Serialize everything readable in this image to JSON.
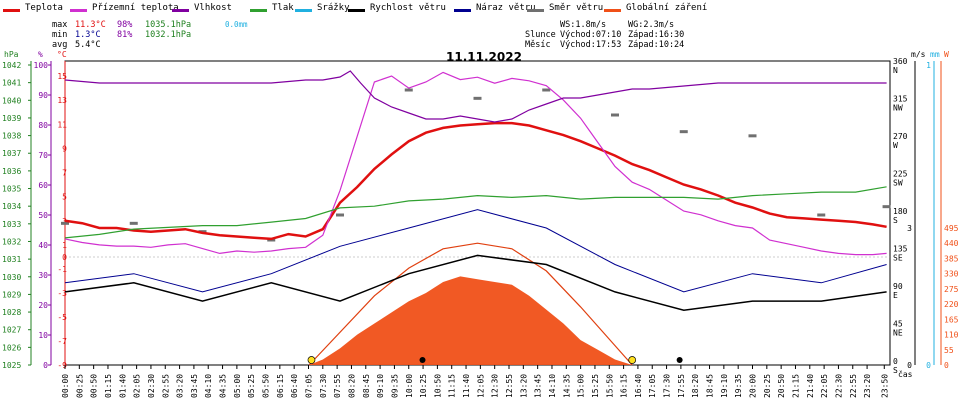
{
  "legend": [
    {
      "label": "Teplota",
      "color": "#e01010"
    },
    {
      "label": "Přízemní teplota",
      "color": "#d030d0"
    },
    {
      "label": "Vlhkost",
      "color": "#8000a0"
    },
    {
      "label": "Tlak",
      "color": "#30a030"
    },
    {
      "label": "Srážky",
      "color": "#20b0e0"
    },
    {
      "label": "Rychlost větru",
      "color": "#000000"
    },
    {
      "label": "Náraz větru",
      "color": "#000090"
    },
    {
      "label": "Směr větru",
      "color": "#707070"
    },
    {
      "label": "Globální záření",
      "color": "#f05018"
    }
  ],
  "stats": {
    "max": {
      "label": "max",
      "temp": "11.3°C",
      "hum": "98%",
      "press": "1035.1hPa",
      "rain": "0.0mm"
    },
    "min": {
      "label": "min",
      "temp": "1.3°C",
      "hum": "81%",
      "press": "1032.1hPa"
    },
    "avg": {
      "label": "avg",
      "temp": "5.4°C"
    },
    "ws": "WS:1.8m/s",
    "wg": "WG:2.3m/s",
    "sun_label": "Slunce",
    "sunrise": "Východ:07:10",
    "sunset": "Západ:16:30",
    "moon_label": "Měsíc",
    "moonrise": "Východ:17:53",
    "moonset": "Západ:10:24"
  },
  "axis_headers": {
    "hpa": "hPa",
    "pct": "%",
    "degc": "°C",
    "ms": "m/s",
    "mm": "mm",
    "w": "W",
    "time": "čas"
  },
  "chart_data": {
    "type": "line",
    "title": "11.11.2022",
    "xlabel": "čas",
    "x_ticks": [
      "00:00",
      "00:25",
      "00:50",
      "01:15",
      "01:40",
      "02:05",
      "02:30",
      "02:55",
      "03:20",
      "03:45",
      "04:10",
      "04:35",
      "05:00",
      "05:25",
      "05:50",
      "06:15",
      "06:40",
      "07:05",
      "07:30",
      "07:55",
      "08:20",
      "08:45",
      "09:10",
      "09:35",
      "10:00",
      "10:25",
      "10:50",
      "11:15",
      "11:40",
      "12:05",
      "12:30",
      "12:55",
      "13:20",
      "13:45",
      "14:10",
      "14:35",
      "15:00",
      "15:25",
      "15:50",
      "16:15",
      "16:40",
      "17:05",
      "17:30",
      "17:55",
      "18:20",
      "18:45",
      "19:10",
      "19:35",
      "20:00",
      "20:25",
      "20:50",
      "21:15",
      "21:40",
      "22:05",
      "22:30",
      "22:55",
      "23:20",
      "23:50"
    ],
    "xlim": [
      0,
      24
    ],
    "axes": {
      "pressure_hpa": {
        "ylim": [
          1025,
          1042
        ],
        "ticks": [
          "1025",
          "1026",
          "1027",
          "1028",
          "1029",
          "1030",
          "1031",
          "1032",
          "1033",
          "1034",
          "1035",
          "1036",
          "1037",
          "1038",
          "1039",
          "1040",
          "1041",
          "1042"
        ]
      },
      "humidity_pct": {
        "ylim": [
          0,
          100
        ],
        "ticks": [
          "0",
          "10",
          "20",
          "30",
          "40",
          "50",
          "60",
          "70",
          "80",
          "90",
          "100"
        ]
      },
      "temperature_c": {
        "ylim": [
          -9,
          16
        ],
        "ticks": [
          "-9",
          "-7",
          "-5",
          "-3",
          "-1",
          "0",
          "1",
          "3",
          "5",
          "7",
          "9",
          "11",
          "13",
          "15"
        ]
      },
      "wind_dir": {
        "ticks": [
          "0 S",
          "45 NE",
          "90 E",
          "135 SE",
          "180 S",
          "225 SW",
          "270 W",
          "315 NW",
          "360 N"
        ]
      },
      "wind_ms": {
        "ticks": [
          "0",
          "3"
        ]
      },
      "rain_mm": {
        "ticks": [
          "0",
          "1"
        ]
      },
      "radiation_w": {
        "ticks": [
          "0",
          "55",
          "110",
          "165",
          "220",
          "275",
          "330",
          "385",
          "440",
          "495"
        ]
      }
    },
    "series": [
      {
        "name": "Teplota",
        "color": "#e01010",
        "axis": "temperature_c",
        "x": [
          0,
          0.5,
          1,
          1.5,
          2,
          2.5,
          3,
          3.5,
          4,
          4.5,
          5,
          5.5,
          6,
          6.5,
          7,
          7.5,
          8,
          8.5,
          9,
          9.5,
          10,
          10.5,
          11,
          11.5,
          12,
          12.5,
          13,
          13.5,
          14,
          14.5,
          15,
          15.5,
          16,
          16.5,
          17,
          17.5,
          18,
          18.5,
          19,
          19.5,
          20,
          20.5,
          21,
          21.5,
          22,
          22.5,
          23,
          23.5,
          23.9
        ],
        "y": [
          3,
          2.8,
          2.4,
          2.4,
          2.2,
          2.1,
          2.2,
          2.3,
          2.0,
          1.8,
          1.7,
          1.6,
          1.5,
          1.9,
          1.7,
          2.3,
          4.5,
          5.8,
          7.3,
          8.5,
          9.6,
          10.3,
          10.7,
          10.9,
          11.0,
          11.1,
          11.1,
          10.9,
          10.5,
          10.1,
          9.6,
          9.0,
          8.4,
          7.7,
          7.2,
          6.6,
          6.0,
          5.6,
          5.1,
          4.5,
          4.1,
          3.6,
          3.3,
          3.2,
          3.1,
          3.0,
          2.9,
          2.7,
          2.5
        ]
      },
      {
        "name": "Přízemní teplota",
        "color": "#d030d0",
        "axis": "temperature_c",
        "x": [
          0,
          0.5,
          1,
          1.5,
          2,
          2.5,
          3,
          3.5,
          4,
          4.5,
          5,
          5.5,
          6,
          6.5,
          7,
          7.5,
          8,
          8.5,
          9,
          9.5,
          10,
          10.5,
          11,
          11.5,
          12,
          12.5,
          13,
          13.5,
          14,
          14.5,
          15,
          15.5,
          16,
          16.5,
          17,
          17.5,
          18,
          18.5,
          19,
          19.5,
          20,
          20.5,
          21,
          21.5,
          22,
          22.5,
          23,
          23.5,
          23.9
        ],
        "y": [
          1.5,
          1.2,
          1.0,
          0.9,
          0.9,
          0.8,
          1.0,
          1.1,
          0.7,
          0.3,
          0.5,
          0.4,
          0.5,
          0.7,
          0.8,
          1.8,
          5.5,
          10.0,
          14.5,
          15.0,
          14.0,
          14.5,
          15.3,
          14.7,
          14.9,
          14.4,
          14.8,
          14.6,
          14.2,
          13.0,
          11.5,
          9.5,
          7.5,
          6.2,
          5.6,
          4.7,
          3.8,
          3.5,
          3.0,
          2.6,
          2.4,
          1.4,
          1.1,
          0.8,
          0.5,
          0.3,
          0.2,
          0.2,
          0.3
        ]
      },
      {
        "name": "Vlhkost",
        "color": "#8000a0",
        "axis": "humidity_pct",
        "x": [
          0,
          1,
          2,
          3,
          4,
          5,
          6,
          7,
          7.5,
          8,
          8.3,
          8.6,
          9,
          9.5,
          10,
          10.5,
          11,
          11.5,
          12,
          12.5,
          13,
          13.5,
          14,
          14.5,
          15,
          15.5,
          16,
          16.5,
          17,
          18,
          19,
          20,
          21,
          22,
          23,
          23.9
        ],
        "y": [
          95,
          94,
          94,
          94,
          94,
          94,
          94,
          95,
          95,
          96,
          98,
          94,
          89,
          86,
          84,
          82,
          82,
          83,
          82,
          81,
          82,
          85,
          87,
          89,
          89,
          90,
          91,
          92,
          92,
          93,
          94,
          94,
          94,
          94,
          94,
          94
        ]
      },
      {
        "name": "Tlak",
        "color": "#30a030",
        "axis": "pressure_hpa",
        "x": [
          0,
          1,
          2,
          3,
          4,
          5,
          6,
          7,
          8,
          9,
          10,
          11,
          12,
          13,
          14,
          15,
          16,
          17,
          18,
          19,
          20,
          21,
          22,
          23,
          23.9
        ],
        "y": [
          1032.2,
          1032.4,
          1032.7,
          1032.8,
          1032.9,
          1032.9,
          1033.1,
          1033.3,
          1033.9,
          1034.0,
          1034.3,
          1034.4,
          1034.6,
          1034.5,
          1034.6,
          1034.4,
          1034.5,
          1034.5,
          1034.5,
          1034.4,
          1034.6,
          1034.7,
          1034.8,
          1034.8,
          1035.1
        ]
      },
      {
        "name": "Globální záření",
        "color": "#f05018",
        "axis": "radiation_w",
        "x": [
          7.1,
          7.5,
          8,
          8.5,
          9,
          9.5,
          10,
          10.5,
          11,
          11.5,
          12,
          12.5,
          13,
          13.5,
          14,
          14.5,
          15,
          15.5,
          16,
          16.5
        ],
        "y": [
          0,
          20,
          60,
          110,
          150,
          190,
          230,
          260,
          300,
          320,
          310,
          300,
          290,
          250,
          200,
          150,
          90,
          55,
          20,
          0
        ]
      }
    ],
    "wind_speed_ms": {
      "x": [
        0,
        2,
        4,
        6,
        8,
        10,
        12,
        14,
        16,
        18,
        20,
        22,
        23.9
      ],
      "y": [
        1.6,
        1.8,
        1.4,
        1.8,
        1.4,
        2.0,
        2.4,
        2.2,
        1.6,
        1.2,
        1.4,
        1.4,
        1.6
      ]
    },
    "wind_gust_ms": {
      "x": [
        0,
        2,
        4,
        6,
        8,
        10,
        12,
        14,
        16,
        18,
        20,
        22,
        23.9
      ],
      "y": [
        1.8,
        2.0,
        1.6,
        2.0,
        2.6,
        3.0,
        3.4,
        3.0,
        2.2,
        1.6,
        2.0,
        1.8,
        2.2
      ]
    },
    "wind_dir_deg": {
      "x": [
        0,
        2,
        4,
        6,
        8,
        10,
        12,
        14,
        16,
        18,
        20,
        22,
        23.9
      ],
      "y": [
        170,
        170,
        160,
        150,
        180,
        330,
        320,
        330,
        300,
        280,
        275,
        180,
        190
      ]
    },
    "clear_sky_radiation": {
      "x": [
        7.1,
        9,
        10,
        11,
        12,
        13,
        14,
        15,
        16.5
      ],
      "y": [
        0,
        250,
        350,
        420,
        440,
        420,
        340,
        210,
        0
      ]
    }
  }
}
